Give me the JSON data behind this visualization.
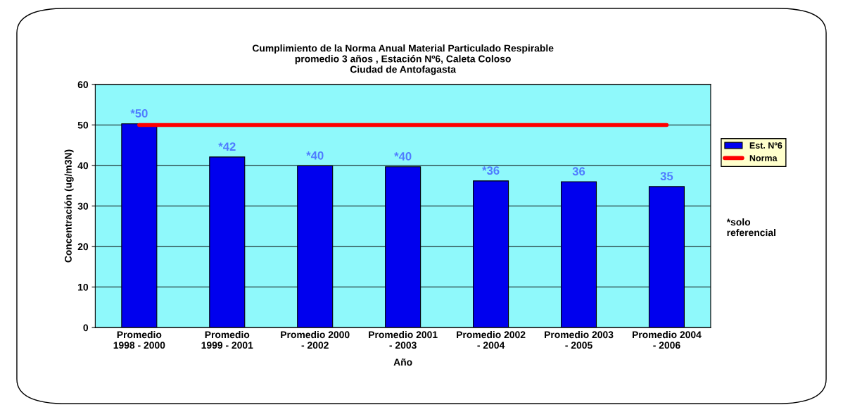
{
  "chart_data": {
    "type": "bar",
    "title": "Cumplimiento de la Norma Anual Material Particulado Respirable\npromedio 3 años , Estación Nº6, Caleta Coloso\nCiudad de Antofagasta",
    "xlabel": "Año",
    "ylabel": "Concentración (ug/m3N)",
    "categories": [
      "Promedio\n1998 - 2000",
      "Promedio\n1999 - 2001",
      "Promedio 2000\n- 2002",
      "Promedio 2001\n- 2003",
      "Promedio 2002\n- 2004",
      "Promedio 2003\n- 2005",
      "Promedio 2004\n- 2006"
    ],
    "series": [
      {
        "name": "Est. Nº6",
        "color": "#0000ee",
        "values": [
          50.3,
          42.1,
          39.9,
          39.7,
          36.2,
          36.0,
          34.8
        ],
        "value_labels": [
          "*50",
          "*42",
          "*40",
          "*40",
          "*36",
          "36",
          "35"
        ]
      },
      {
        "name": "Norma",
        "type": "line",
        "color": "#ff0000",
        "values": [
          50,
          50,
          50,
          50,
          50,
          50,
          50
        ]
      }
    ],
    "ylim": [
      0,
      60
    ],
    "yticks": [
      0,
      10,
      20,
      30,
      40,
      50,
      60
    ],
    "grid": "y",
    "legend": "right",
    "annotations": [
      "*solo\nreferencial"
    ]
  }
}
